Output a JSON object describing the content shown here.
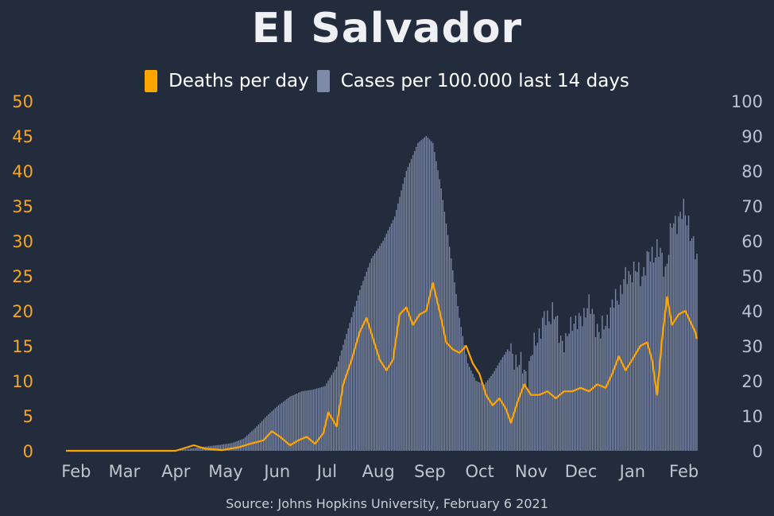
{
  "chart_data": {
    "type": "bar",
    "title": "El Salvador",
    "source": "Source: Johns Hopkins University, February 6 2021",
    "legend": [
      {
        "label": "Deaths per day",
        "color": "#ffa500",
        "kind": "line"
      },
      {
        "label": "Cases per 100.000 last 14 days",
        "color": "#7d8aa8",
        "kind": "bar"
      }
    ],
    "x_tick_labels": [
      "Feb",
      "Mar",
      "Apr",
      "May",
      "Jun",
      "Jul",
      "Aug",
      "Sep",
      "Oct",
      "Nov",
      "Dec",
      "Jan",
      "Feb"
    ],
    "y_left": {
      "ylim": [
        0,
        50
      ],
      "ticks": [
        "0",
        "5",
        "10",
        "15",
        "20",
        "25",
        "30",
        "35",
        "40",
        "45",
        "50"
      ]
    },
    "y_right": {
      "ylim": [
        0,
        100
      ],
      "ticks": [
        "0",
        "10",
        "20",
        "30",
        "40",
        "50",
        "60",
        "70",
        "80",
        "90",
        "100"
      ]
    },
    "x_range": [
      "2020-01-22",
      "2021-02-05"
    ],
    "series": [
      {
        "name": "Cases per 100.000 last 14 days",
        "axis": "right",
        "type": "bar",
        "points": [
          [
            "2020-01-22",
            0
          ],
          [
            "2020-03-25",
            0
          ],
          [
            "2020-04-05",
            0.6
          ],
          [
            "2020-04-15",
            1.2
          ],
          [
            "2020-04-25",
            1.8
          ],
          [
            "2020-05-01",
            2.2
          ],
          [
            "2020-05-08",
            3.5
          ],
          [
            "2020-05-15",
            6.5
          ],
          [
            "2020-05-22",
            10
          ],
          [
            "2020-05-29",
            13
          ],
          [
            "2020-06-05",
            15.5
          ],
          [
            "2020-06-12",
            17
          ],
          [
            "2020-06-19",
            17.5
          ],
          [
            "2020-06-26",
            18.5
          ],
          [
            "2020-07-03",
            24
          ],
          [
            "2020-07-10",
            35
          ],
          [
            "2020-07-17",
            46
          ],
          [
            "2020-07-24",
            55
          ],
          [
            "2020-07-31",
            60
          ],
          [
            "2020-08-07",
            67
          ],
          [
            "2020-08-14",
            80
          ],
          [
            "2020-08-21",
            88
          ],
          [
            "2020-08-26",
            90
          ],
          [
            "2020-08-30",
            88
          ],
          [
            "2020-09-04",
            75
          ],
          [
            "2020-09-10",
            55
          ],
          [
            "2020-09-15",
            38
          ],
          [
            "2020-09-20",
            25
          ],
          [
            "2020-09-25",
            20
          ],
          [
            "2020-09-30",
            19
          ],
          [
            "2020-10-05",
            22
          ],
          [
            "2020-10-10",
            26
          ],
          [
            "2020-10-14",
            29
          ],
          [
            "2020-10-18",
            27
          ],
          [
            "2020-10-22",
            24
          ],
          [
            "2020-10-26",
            22
          ],
          [
            "2020-10-31",
            32
          ],
          [
            "2020-11-05",
            37
          ],
          [
            "2020-11-10",
            40
          ],
          [
            "2020-11-14",
            34
          ],
          [
            "2020-11-18",
            30
          ],
          [
            "2020-11-22",
            38
          ],
          [
            "2020-11-26",
            36
          ],
          [
            "2020-12-01",
            42
          ],
          [
            "2020-12-05",
            38
          ],
          [
            "2020-12-09",
            33
          ],
          [
            "2020-12-13",
            38
          ],
          [
            "2020-12-18",
            43
          ],
          [
            "2020-12-23",
            48
          ],
          [
            "2020-12-28",
            52
          ],
          [
            "2021-01-02",
            50
          ],
          [
            "2021-01-07",
            55
          ],
          [
            "2021-01-12",
            58
          ],
          [
            "2021-01-17",
            52
          ],
          [
            "2021-01-21",
            64
          ],
          [
            "2021-01-25",
            67
          ],
          [
            "2021-01-28",
            68
          ],
          [
            "2021-01-31",
            66
          ],
          [
            "2021-02-03",
            58
          ],
          [
            "2021-02-05",
            54
          ]
        ]
      },
      {
        "name": "Deaths per day",
        "axis": "left",
        "type": "line",
        "points": [
          [
            "2020-01-22",
            0
          ],
          [
            "2020-03-28",
            0
          ],
          [
            "2020-04-08",
            0.8
          ],
          [
            "2020-04-15",
            0.3
          ],
          [
            "2020-04-25",
            0.1
          ],
          [
            "2020-05-05",
            0.5
          ],
          [
            "2020-05-12",
            1.0
          ],
          [
            "2020-05-20",
            1.5
          ],
          [
            "2020-05-25",
            2.8
          ],
          [
            "2020-05-30",
            2.0
          ],
          [
            "2020-06-05",
            0.8
          ],
          [
            "2020-06-10",
            1.5
          ],
          [
            "2020-06-15",
            2.0
          ],
          [
            "2020-06-20",
            1.0
          ],
          [
            "2020-06-25",
            2.5
          ],
          [
            "2020-06-28",
            5.5
          ],
          [
            "2020-07-03",
            3.5
          ],
          [
            "2020-07-07",
            9.5
          ],
          [
            "2020-07-12",
            13
          ],
          [
            "2020-07-17",
            17
          ],
          [
            "2020-07-21",
            19
          ],
          [
            "2020-07-25",
            16
          ],
          [
            "2020-07-29",
            13
          ],
          [
            "2020-08-02",
            11.5
          ],
          [
            "2020-08-06",
            13
          ],
          [
            "2020-08-10",
            19.5
          ],
          [
            "2020-08-14",
            20.5
          ],
          [
            "2020-08-18",
            18
          ],
          [
            "2020-08-22",
            19.5
          ],
          [
            "2020-08-26",
            20
          ],
          [
            "2020-08-30",
            24
          ],
          [
            "2020-09-03",
            20
          ],
          [
            "2020-09-07",
            15.5
          ],
          [
            "2020-09-11",
            14.5
          ],
          [
            "2020-09-15",
            14
          ],
          [
            "2020-09-19",
            15
          ],
          [
            "2020-09-23",
            12.5
          ],
          [
            "2020-09-27",
            11
          ],
          [
            "2020-10-01",
            8
          ],
          [
            "2020-10-05",
            6.5
          ],
          [
            "2020-10-09",
            7.5
          ],
          [
            "2020-10-13",
            6
          ],
          [
            "2020-10-16",
            4
          ],
          [
            "2020-10-20",
            7
          ],
          [
            "2020-10-24",
            9.5
          ],
          [
            "2020-10-28",
            8
          ],
          [
            "2020-11-02",
            8
          ],
          [
            "2020-11-07",
            8.5
          ],
          [
            "2020-11-12",
            7.5
          ],
          [
            "2020-11-17",
            8.5
          ],
          [
            "2020-11-22",
            8.5
          ],
          [
            "2020-11-27",
            9
          ],
          [
            "2020-12-02",
            8.5
          ],
          [
            "2020-12-07",
            9.5
          ],
          [
            "2020-12-12",
            9
          ],
          [
            "2020-12-16",
            11
          ],
          [
            "2020-12-20",
            13.5
          ],
          [
            "2020-12-24",
            11.5
          ],
          [
            "2020-12-28",
            13
          ],
          [
            "2021-01-02",
            15
          ],
          [
            "2021-01-06",
            15.5
          ],
          [
            "2021-01-09",
            13
          ],
          [
            "2021-01-12",
            8
          ],
          [
            "2021-01-15",
            16
          ],
          [
            "2021-01-18",
            22
          ],
          [
            "2021-01-21",
            18
          ],
          [
            "2021-01-25",
            19.5
          ],
          [
            "2021-01-29",
            20
          ],
          [
            "2021-02-01",
            18.5
          ],
          [
            "2021-02-04",
            17
          ],
          [
            "2021-02-05",
            16
          ]
        ]
      }
    ],
    "grid": false,
    "legend_placement": "top-center"
  }
}
